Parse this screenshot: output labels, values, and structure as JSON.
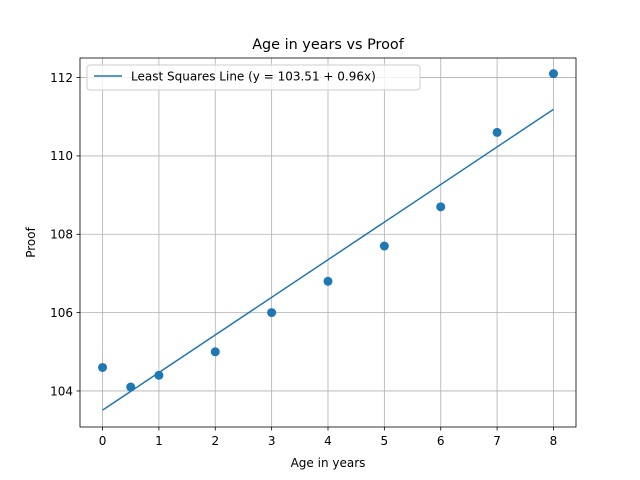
{
  "chart_data": {
    "type": "scatter",
    "title": "Age in years vs Proof",
    "xlabel": "Age in years",
    "ylabel": "Proof",
    "xlim": [
      -0.4,
      8.4
    ],
    "ylim": [
      103.08,
      112.5
    ],
    "xticks": [
      0,
      1,
      2,
      3,
      4,
      5,
      6,
      7,
      8
    ],
    "yticks": [
      104,
      106,
      108,
      110,
      112
    ],
    "grid": true,
    "legend_position": "upper-left",
    "series": [
      {
        "kind": "scatter",
        "color": "#1f77b4",
        "x": [
          0,
          0.5,
          1,
          2,
          3,
          4,
          5,
          6,
          7,
          8
        ],
        "y": [
          104.6,
          104.1,
          104.4,
          105.0,
          106.0,
          106.8,
          107.7,
          108.7,
          110.6,
          112.1
        ]
      },
      {
        "kind": "line",
        "name": "Least Squares Line (y = 103.51 + 0.96x)",
        "color": "#1f77b4",
        "intercept": 103.51,
        "slope": 0.96,
        "x_range": [
          0,
          8
        ]
      }
    ]
  }
}
